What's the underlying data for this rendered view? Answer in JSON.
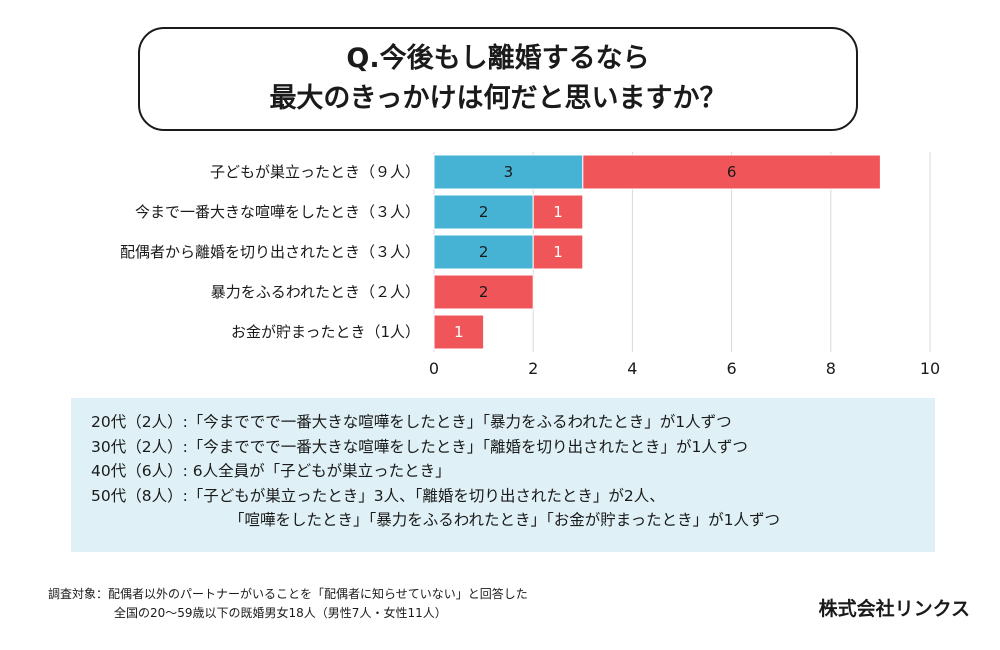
{
  "title": {
    "line1": "Q.今後もし離婚するなら",
    "line2": "最大のきっかけは何だと思いますか？"
  },
  "colors": {
    "series_blue": "#46b3d4",
    "series_red": "#f0555a",
    "grid": "#d9d9d9",
    "notes_bg": "#dff1f6"
  },
  "chart_data": {
    "type": "bar",
    "orientation": "horizontal",
    "stacked": true,
    "categories": [
      "子どもが巣立ったとき（９人）",
      "今まで一番大きな喧嘩をしたとき（３人）",
      "配偶者から離婚を切り出されたとき（３人）",
      "暴力をふるわれたとき（２人）",
      "お金が貯まったとき（1人）"
    ],
    "series": [
      {
        "name": "blue",
        "color": "#46b3d4",
        "values": [
          3,
          2,
          2,
          0,
          0
        ]
      },
      {
        "name": "red",
        "color": "#f0555a",
        "values": [
          6,
          1,
          1,
          2,
          1
        ]
      }
    ],
    "xlim": [
      0,
      10
    ],
    "xticks": [
      0,
      2,
      4,
      6,
      8,
      10
    ],
    "grid": true,
    "legend": "none"
  },
  "notes": {
    "lines": [
      "20代（2人）:「今まででで一番大きな喧嘩をしたとき」「暴力をふるわれたとき」が1人ずつ",
      "30代（2人）:「今まででで一番大きな喧嘩をしたとき」「離婚を切り出されたとき」が1人ずつ",
      "40代（6人）: 6人全員が「子どもが巣立ったとき」",
      "50代（8人）:「子どもが巣立ったとき」3人、「離婚を切り出されたとき」が2人、",
      "「喧嘩をしたとき」「暴力をふるわれたとき」「お金が貯まったとき」が1人ずつ"
    ]
  },
  "footer": {
    "line1": "調査対象：配偶者以外のパートナーがいることを「配偶者に知らせていない」と回答した",
    "line2": "全国の20〜59歳以下の既婚男女18人（男性7人・女性11人）",
    "company": "株式会社リンクス"
  }
}
